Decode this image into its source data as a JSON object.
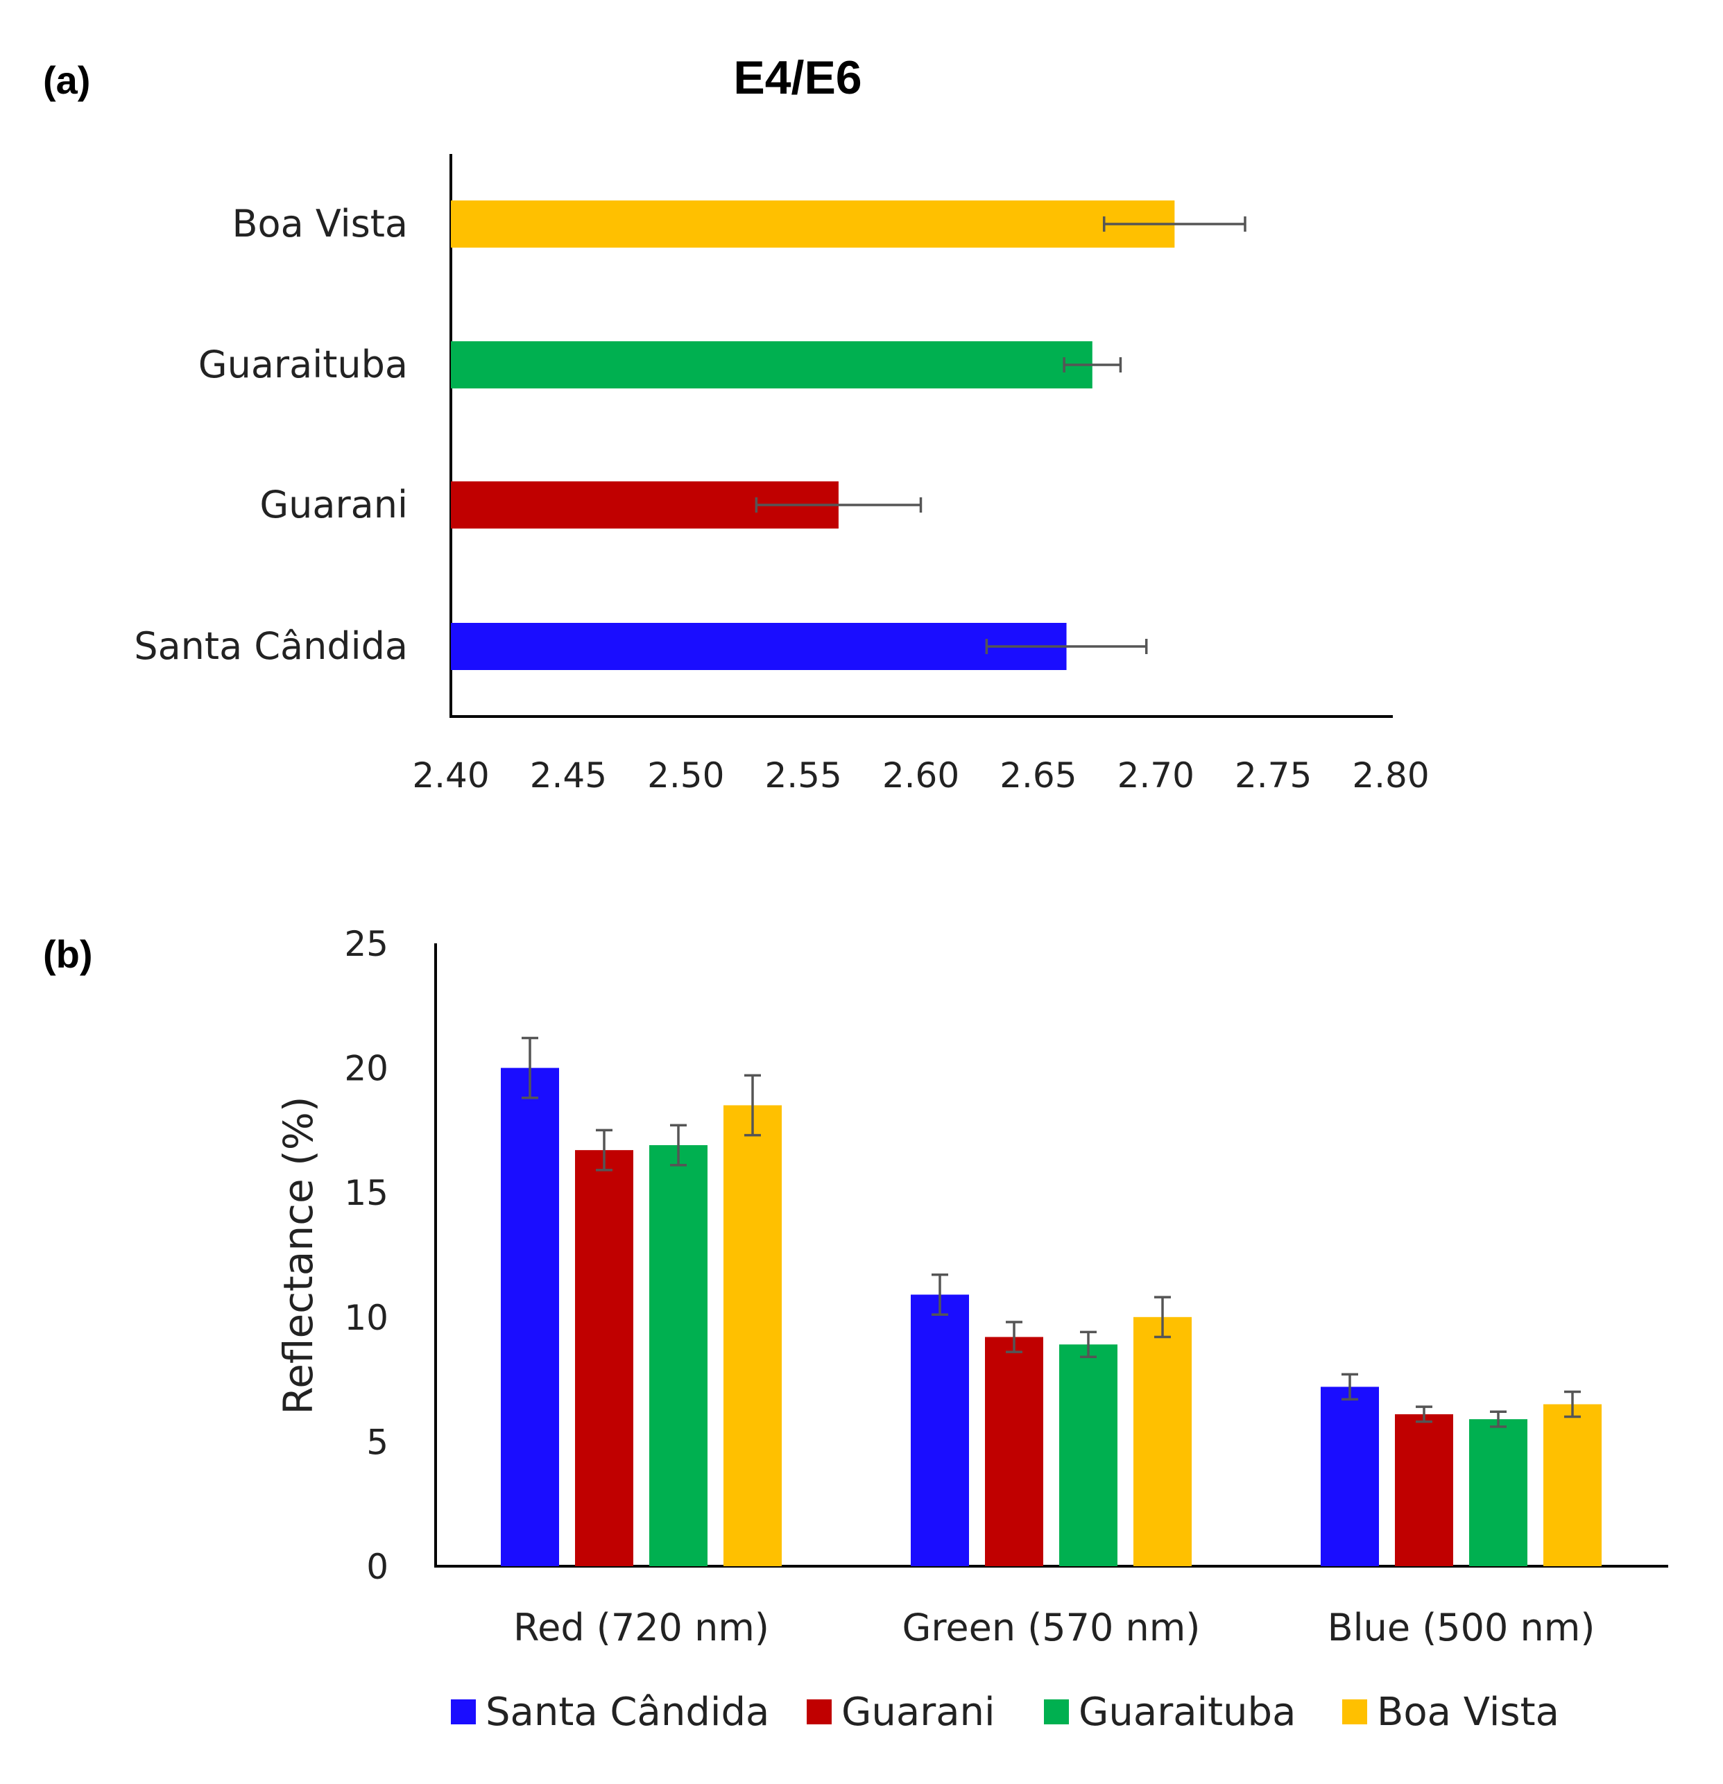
{
  "panels": {
    "a": "(a)",
    "b": "(b)"
  },
  "colors": {
    "Santa Cândida": "#1a0dff",
    "Guarani": "#c00000",
    "Guaraituba": "#00b050",
    "Boa Vista": "#ffc000"
  },
  "chart_data": [
    {
      "type": "bar",
      "orientation": "horizontal",
      "title": "E4/E6",
      "categories": [
        "Santa Cândida",
        "Guarani",
        "Guaraituba",
        "Boa Vista"
      ],
      "values": [
        2.662,
        2.565,
        2.673,
        2.708
      ],
      "errors": [
        0.034,
        0.035,
        0.012,
        0.03
      ],
      "xlim": [
        2.4,
        2.8
      ],
      "xticks": [
        "2.40",
        "2.45",
        "2.50",
        "2.55",
        "2.60",
        "2.65",
        "2.70",
        "2.75",
        "2.80"
      ],
      "xtick_values": [
        2.4,
        2.45,
        2.5,
        2.55,
        2.6,
        2.65,
        2.7,
        2.75,
        2.8
      ],
      "xlabel": "",
      "ylabel": ""
    },
    {
      "type": "bar",
      "orientation": "vertical",
      "title": "",
      "categories": [
        "Red (720 nm)",
        "Green (570 nm)",
        "Blue (500 nm)"
      ],
      "series": [
        {
          "name": "Santa Cândida",
          "values": [
            20.0,
            10.9,
            7.2
          ],
          "errors": [
            1.2,
            0.8,
            0.5
          ]
        },
        {
          "name": "Guarani",
          "values": [
            16.7,
            9.2,
            6.1
          ],
          "errors": [
            0.8,
            0.6,
            0.3
          ]
        },
        {
          "name": "Guaraituba",
          "values": [
            16.9,
            8.9,
            5.9
          ],
          "errors": [
            0.8,
            0.5,
            0.3
          ]
        },
        {
          "name": "Boa Vista",
          "values": [
            18.5,
            10.0,
            6.5
          ],
          "errors": [
            1.2,
            0.8,
            0.5
          ]
        }
      ],
      "ylim": [
        0,
        25
      ],
      "yticks": [
        "0",
        "5",
        "10",
        "15",
        "20",
        "25"
      ],
      "ytick_values": [
        0,
        5,
        10,
        15,
        20,
        25
      ],
      "xlabel": "",
      "ylabel": "Reflectance (%)",
      "legend": [
        "Santa Cândida",
        "Guarani",
        "Guaraituba",
        "Boa Vista"
      ],
      "legend_position": "bottom"
    }
  ]
}
